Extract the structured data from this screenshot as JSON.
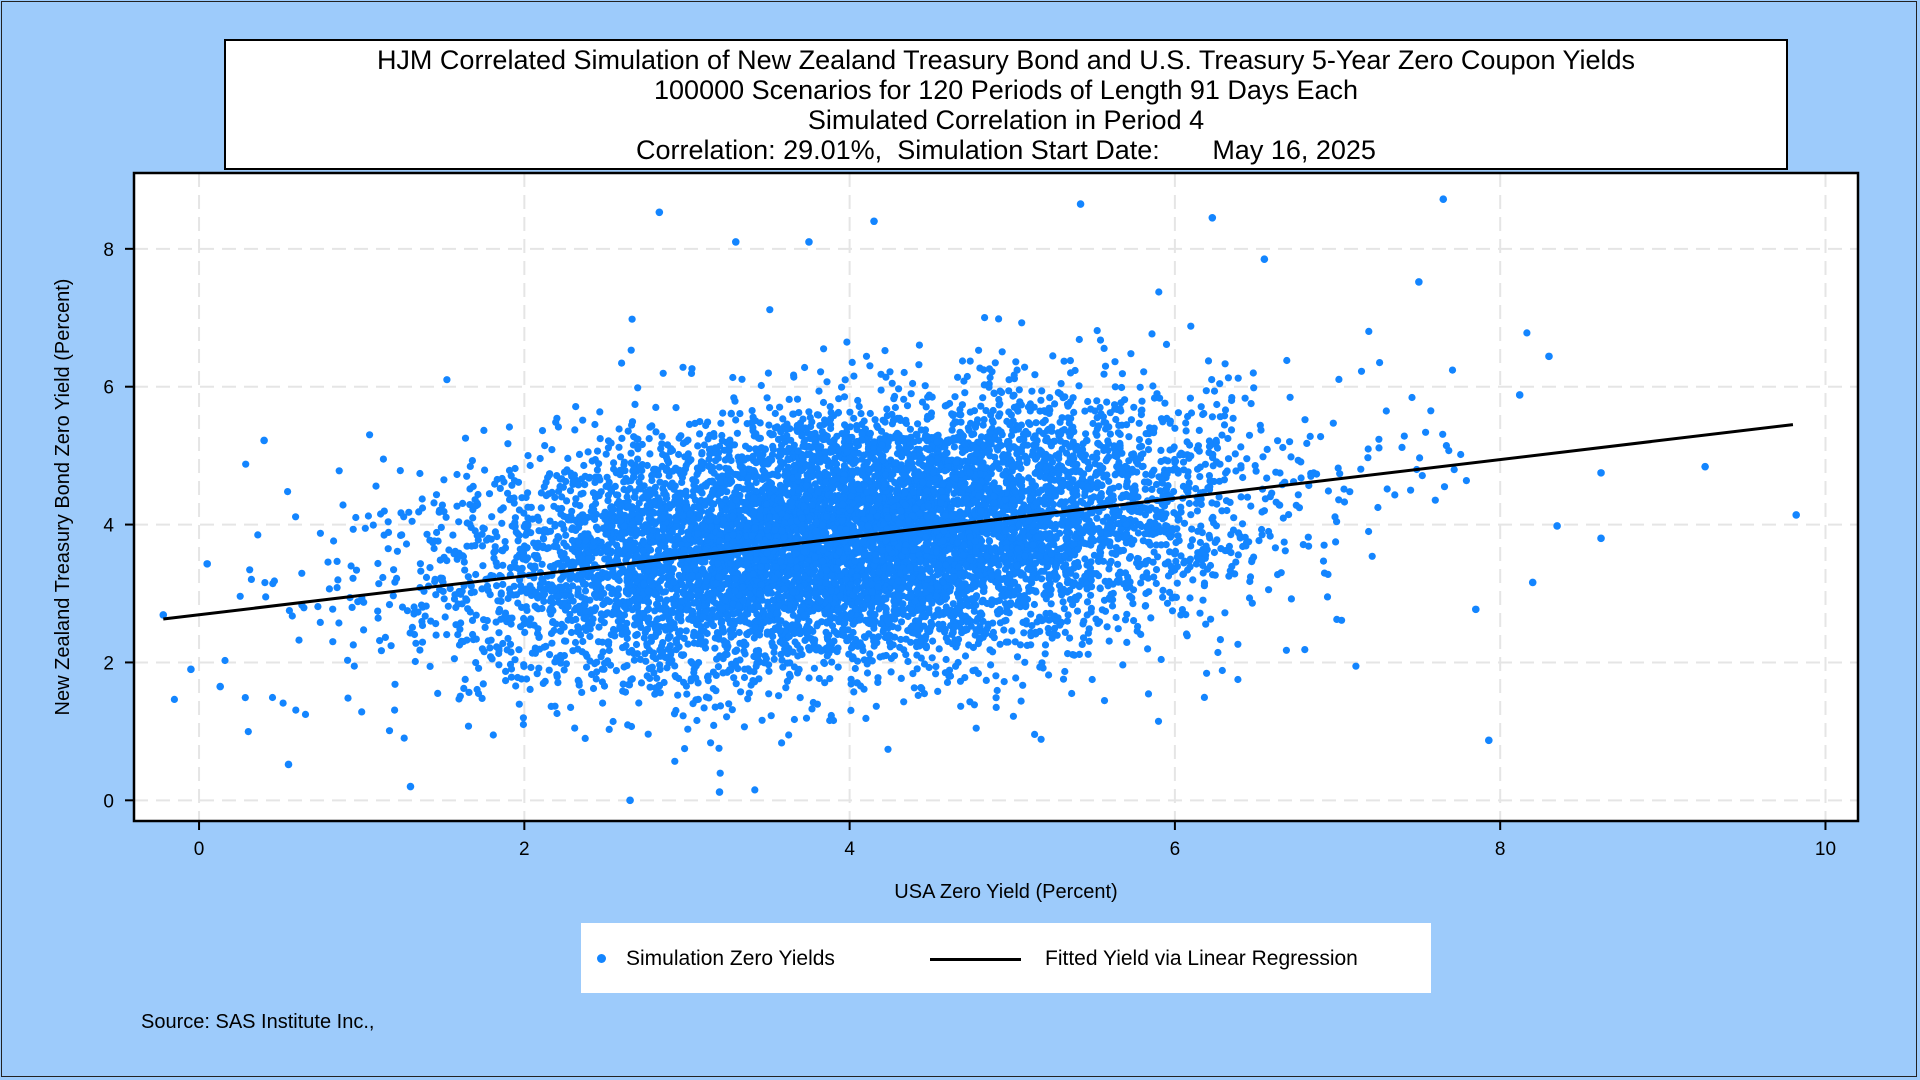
{
  "title_lines": [
    "HJM Correlated Simulation of New Zealand Treasury Bond and U.S. Treasury 5-Year Zero Coupon Yields",
    "100000 Scenarios for 120 Periods of Length 91 Days Each",
    "Simulated Correlation in Period 4",
    "Correlation: 29.01%,  Simulation Start Date:       May 16, 2025"
  ],
  "source": "Source: SAS Institute Inc.,",
  "colors": {
    "background": "#9dcbfb",
    "points": "#1385ff",
    "regression_line": "#000000",
    "plot_area": "#ffffff",
    "grid": "#e5e5e5"
  },
  "chart_data": {
    "type": "scatter",
    "xlabel": "USA Zero Yield (Percent)",
    "ylabel": "New Zealand Treasury Bond Zero Yield (Percent)",
    "xlim": [
      -0.4,
      10.2
    ],
    "ylim": [
      -0.3,
      9.1
    ],
    "x_ticks": [
      0,
      2,
      4,
      6,
      8,
      10
    ],
    "y_ticks": [
      0,
      2,
      4,
      6,
      8
    ],
    "grid": true,
    "legend_position": "bottom",
    "series": [
      {
        "name": "Simulation Zero Yields",
        "kind": "points",
        "n_scenarios": 100000,
        "center": [
          4.0,
          3.8
        ],
        "sd": [
          1.15,
          0.95
        ],
        "correlation": 0.2901,
        "outliers": [
          [
            -0.22,
            2.69
          ],
          [
            -0.05,
            1.9
          ],
          [
            0.05,
            3.43
          ],
          [
            0.13,
            1.65
          ],
          [
            0.4,
            5.22
          ],
          [
            0.55,
            0.52
          ],
          [
            1.3,
            0.2
          ],
          [
            2.65,
            0.0
          ],
          [
            3.2,
            0.12
          ],
          [
            2.83,
            8.53
          ],
          [
            3.3,
            8.1
          ],
          [
            3.75,
            8.1
          ],
          [
            4.15,
            8.4
          ],
          [
            5.42,
            8.65
          ],
          [
            6.23,
            8.45
          ],
          [
            7.65,
            8.72
          ],
          [
            6.55,
            7.85
          ],
          [
            7.5,
            7.52
          ],
          [
            8.3,
            6.44
          ],
          [
            8.12,
            5.88
          ],
          [
            8.62,
            4.75
          ],
          [
            9.26,
            4.84
          ],
          [
            9.82,
            4.14
          ],
          [
            8.62,
            3.8
          ],
          [
            7.93,
            0.87
          ],
          [
            8.35,
            3.98
          ],
          [
            7.85,
            2.77
          ],
          [
            8.2,
            3.16
          ]
        ]
      },
      {
        "name": "Fitted Yield via Linear Regression",
        "kind": "line",
        "x": [
          -0.22,
          9.8
        ],
        "y": [
          2.63,
          5.45
        ]
      }
    ]
  }
}
